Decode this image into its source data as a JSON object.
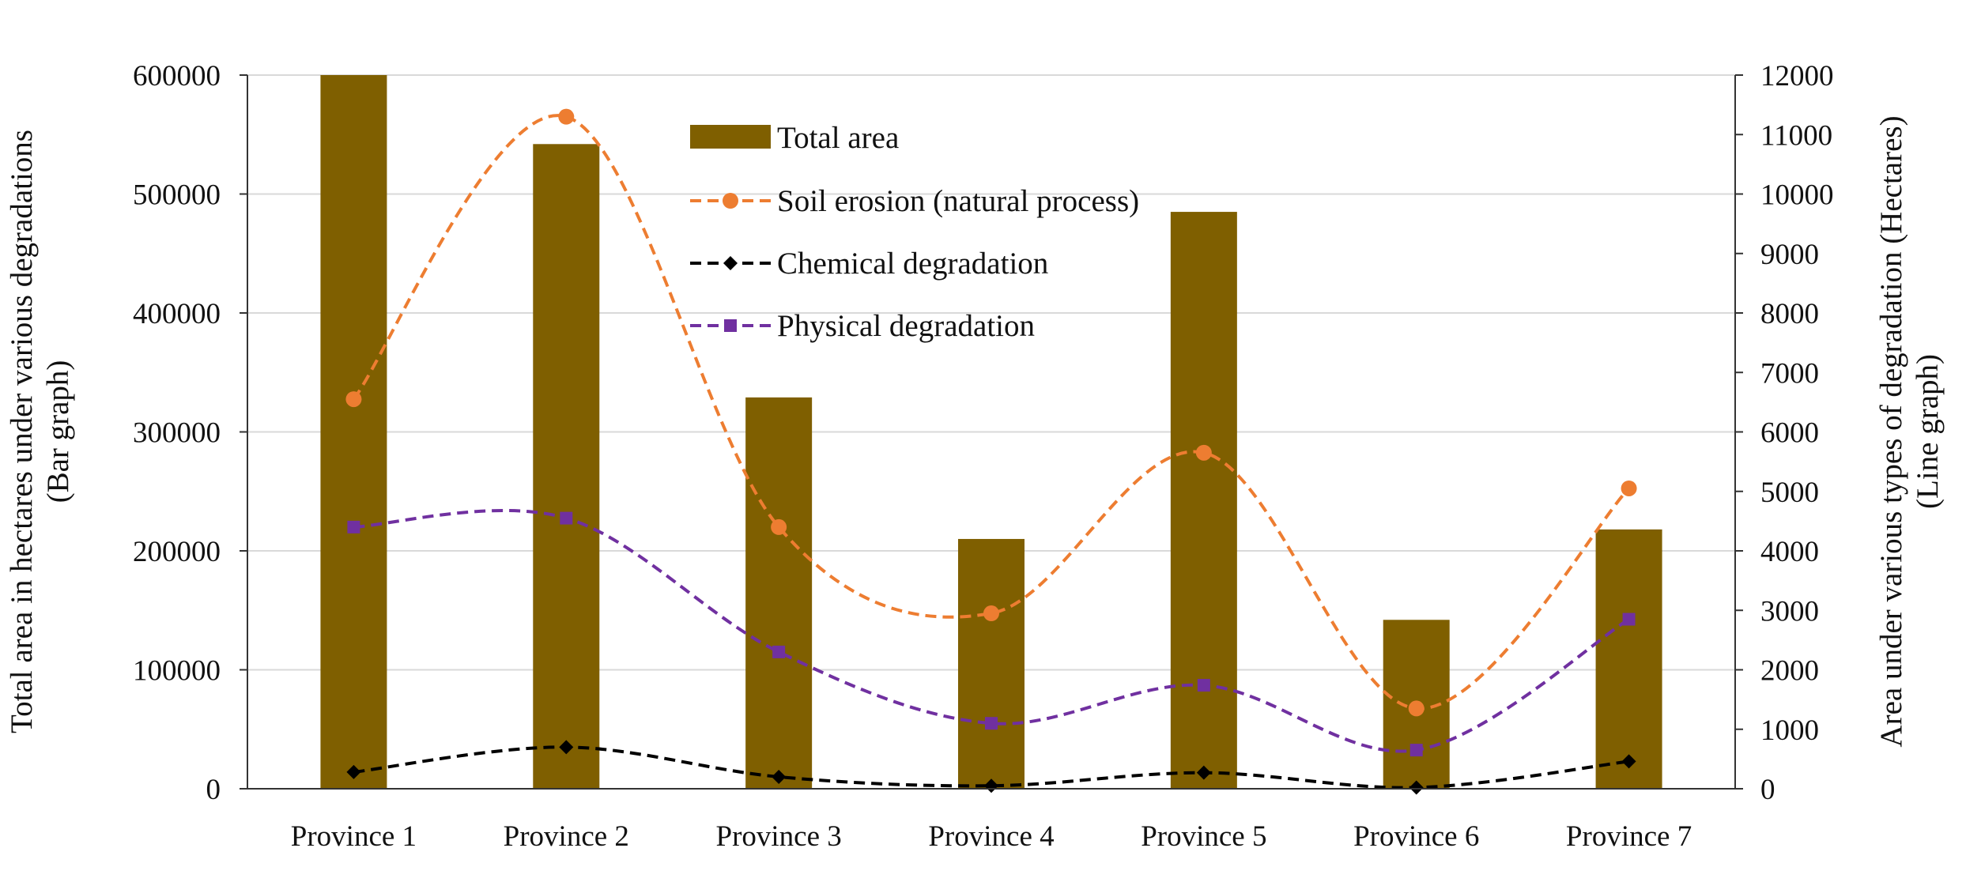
{
  "chart_data": {
    "type": "bar+line",
    "title": "",
    "categories": [
      "Province 1",
      "Province 2",
      "Province 3",
      "Province 4",
      "Province 5",
      "Province 6",
      "Province 7"
    ],
    "bar_series": {
      "name": "Total area",
      "axis": "left",
      "color": "#7f5f00",
      "values": [
        600000,
        542000,
        329000,
        210000,
        485000,
        142000,
        218000
      ]
    },
    "line_series": [
      {
        "name": "Soil erosion (natural process)",
        "axis": "right",
        "color": "#ed7d31",
        "marker": "circle",
        "values": [
          6550,
          11300,
          4400,
          2950,
          5650,
          1350,
          5050
        ]
      },
      {
        "name": "Chemical degradation",
        "axis": "right",
        "color": "#000000",
        "marker": "diamond",
        "values": [
          280,
          700,
          200,
          50,
          270,
          20,
          460
        ]
      },
      {
        "name": "Physical degradation",
        "axis": "right",
        "color": "#7030a0",
        "marker": "square",
        "values": [
          4400,
          4550,
          2300,
          1100,
          1740,
          650,
          2850
        ]
      }
    ],
    "left_axis": {
      "label_line1": "Total area in hectares under various degradations",
      "label_line2": "(Bar graph)",
      "ylim": [
        0,
        600000
      ],
      "ticks": [
        0,
        100000,
        200000,
        300000,
        400000,
        500000,
        600000
      ]
    },
    "right_axis": {
      "label_line1": "Area under various types of degradation (Hectares)",
      "label_line2": "(Line graph)",
      "ylim": [
        0,
        12000
      ],
      "ticks": [
        0,
        1000,
        2000,
        3000,
        4000,
        5000,
        6000,
        7000,
        8000,
        9000,
        10000,
        11000,
        12000
      ]
    },
    "legend_position": "top-center",
    "grid": true
  }
}
